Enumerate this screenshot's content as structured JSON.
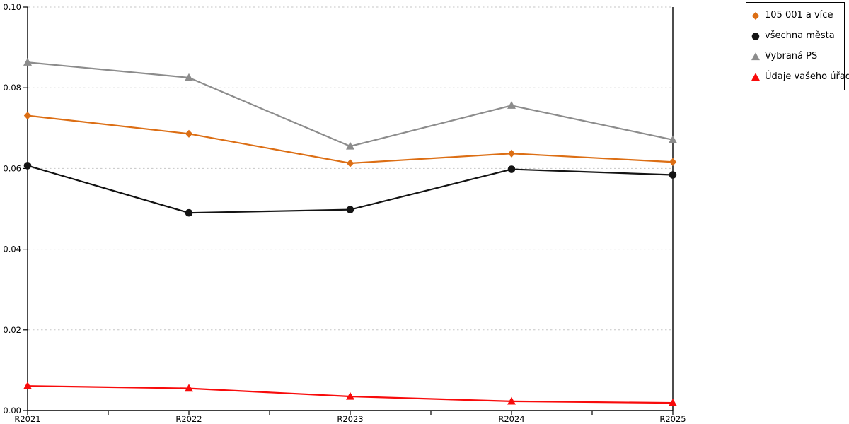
{
  "chart_data": {
    "type": "line",
    "categories": [
      "R2021",
      "R2022",
      "R2023",
      "R2024",
      "R2025"
    ],
    "series": [
      {
        "name": "105 001 a více",
        "marker": "diamond",
        "color": "#DC6E14",
        "values": [
          0.0731,
          0.0686,
          0.0613,
          0.0637,
          0.0616
        ]
      },
      {
        "name": "všechna města",
        "marker": "circle",
        "color": "#141414",
        "values": [
          0.0607,
          0.049,
          0.0498,
          0.0598,
          0.0584
        ]
      },
      {
        "name": "Vybraná PS",
        "marker": "triangle",
        "color": "#8C8C8C",
        "values": [
          0.0863,
          0.0825,
          0.0655,
          0.0756,
          0.0671
        ]
      },
      {
        "name": "Údaje vašeho úřadu",
        "marker": "triangle",
        "color": "#F80B0B",
        "values": [
          0.0061,
          0.0055,
          0.0035,
          0.0023,
          0.0019
        ]
      }
    ],
    "ylim": [
      0,
      0.1
    ],
    "yticks": [
      "0.00",
      "0.02",
      "0.04",
      "0.06",
      "0.08",
      "0.10"
    ],
    "xticks_minor_per_interval": 1,
    "grid": "horizontal-dashed",
    "legend_position": "top-right"
  },
  "colors": {
    "background": "#FFFFFF",
    "grid": "#C6C6C6",
    "axis": "#000000",
    "tick_label": "#000000",
    "legend_border": "#000000"
  }
}
